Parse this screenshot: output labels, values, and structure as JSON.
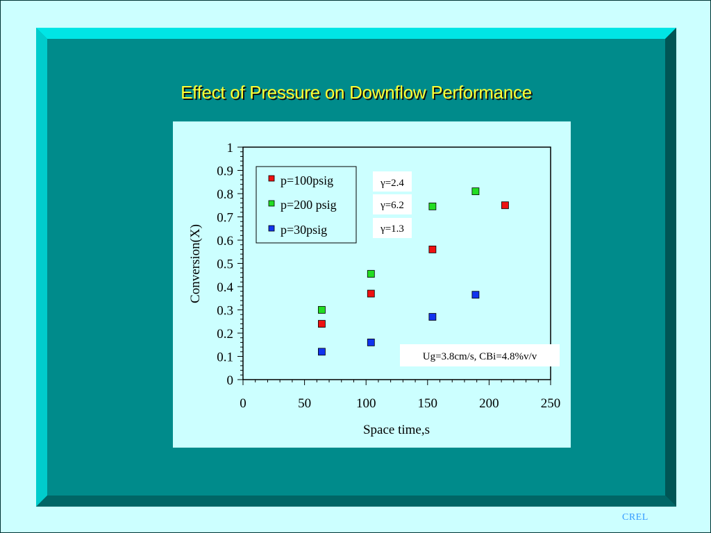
{
  "slide": {
    "title": "Effect of Pressure on Downflow Performance",
    "footer_logo": "CREL"
  },
  "colors": {
    "background": "#ccffff",
    "panel": "#008b8b",
    "bevel_light": "#00e5e5",
    "bevel_dark": "#005555",
    "title": "#ffff33",
    "crel": "#3399ff"
  },
  "chart_data": {
    "type": "scatter",
    "title": "",
    "xlabel": "Space time,s",
    "ylabel": "Conversion(X)",
    "xlim": [
      0,
      250
    ],
    "ylim": [
      0,
      1
    ],
    "xticks": [
      "0",
      "50",
      "100",
      "150",
      "200",
      "250"
    ],
    "yticks": [
      "0",
      "0.1",
      "0.2",
      "0.3",
      "0.4",
      "0.5",
      "0.6",
      "0.7",
      "0.8",
      "0.9",
      "1"
    ],
    "grid": false,
    "legend_position": "top-left",
    "series": [
      {
        "name": "p=100psig",
        "color": "#ee1111",
        "points": [
          [
            64,
            0.24
          ],
          [
            104,
            0.37
          ],
          [
            154,
            0.56
          ],
          [
            213,
            0.75
          ]
        ]
      },
      {
        "name": "p=200 psig",
        "color": "#22dd22",
        "points": [
          [
            64,
            0.3
          ],
          [
            104,
            0.455
          ],
          [
            154,
            0.745
          ],
          [
            189,
            0.81
          ]
        ]
      },
      {
        "name": "p=30psig",
        "color": "#1133ee",
        "points": [
          [
            64,
            0.12
          ],
          [
            104,
            0.16
          ],
          [
            154,
            0.27
          ],
          [
            189,
            0.365
          ]
        ]
      }
    ],
    "annotations": [
      {
        "text": "γ=2.4"
      },
      {
        "text": "γ=6.2"
      },
      {
        "text": "γ=1.3"
      },
      {
        "text": "Ug=3.8cm/s, CBi=4.8%v/v"
      }
    ]
  }
}
